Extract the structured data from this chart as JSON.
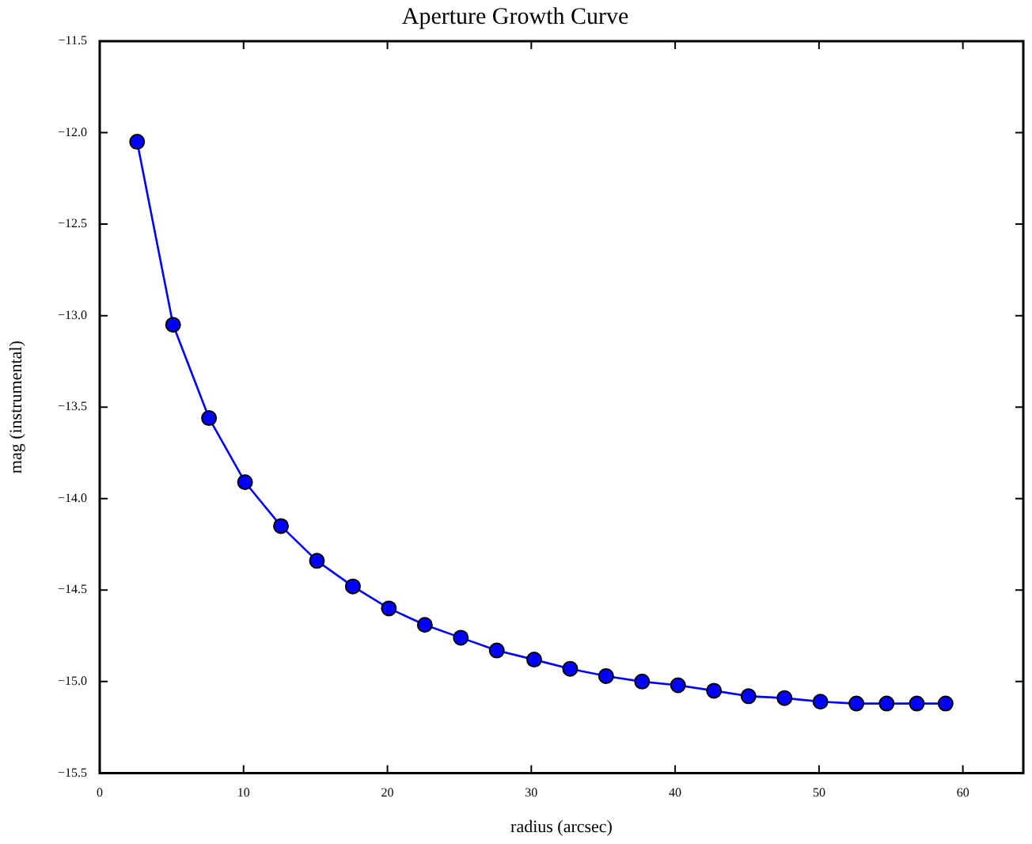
{
  "chart_data": {
    "type": "line",
    "title": "Aperture Growth Curve",
    "xlabel": "radius (arcsec)",
    "ylabel": "mag (instrumental)",
    "x": [
      2.6,
      5.1,
      7.6,
      10.1,
      12.6,
      15.1,
      17.6,
      20.1,
      22.6,
      25.1,
      27.6,
      30.2,
      32.7,
      35.2,
      37.7,
      40.2,
      42.7,
      45.1,
      47.6,
      50.1,
      52.6,
      54.7,
      56.8,
      58.8
    ],
    "series": [
      {
        "color": "#0000ff",
        "values": [
          -12.05,
          -13.05,
          -13.56,
          -13.91,
          -14.15,
          -14.34,
          -14.48,
          -14.6,
          -14.69,
          -14.76,
          -14.83,
          -14.88,
          -14.93,
          -14.97,
          -15.0,
          -15.02,
          -15.05,
          -15.08,
          -15.09,
          -15.11,
          -15.12,
          -15.12,
          -15.12,
          -15.12
        ]
      }
    ],
    "xlim": [
      0,
      64.2
    ],
    "xticks": [
      0,
      10,
      20,
      30,
      40,
      50,
      60
    ],
    "ylim": [
      -15.5,
      -11.5
    ],
    "yticks": [
      {
        "value": -15.5,
        "label": "−15.5"
      },
      {
        "value": -15,
        "label": "−15.0"
      },
      {
        "value": -14.5,
        "label": "−14.5"
      },
      {
        "value": -14,
        "label": "−14.0"
      },
      {
        "value": -13.5,
        "label": "−13.5"
      },
      {
        "value": -13,
        "label": "−13.0"
      },
      {
        "value": -12.5,
        "label": "−12.5"
      },
      {
        "value": -12,
        "label": "−12.0"
      },
      {
        "value": -11.5,
        "label": "−11.5"
      }
    ],
    "grid": false,
    "legend": false,
    "marker": "circle",
    "line_style": "solid"
  }
}
